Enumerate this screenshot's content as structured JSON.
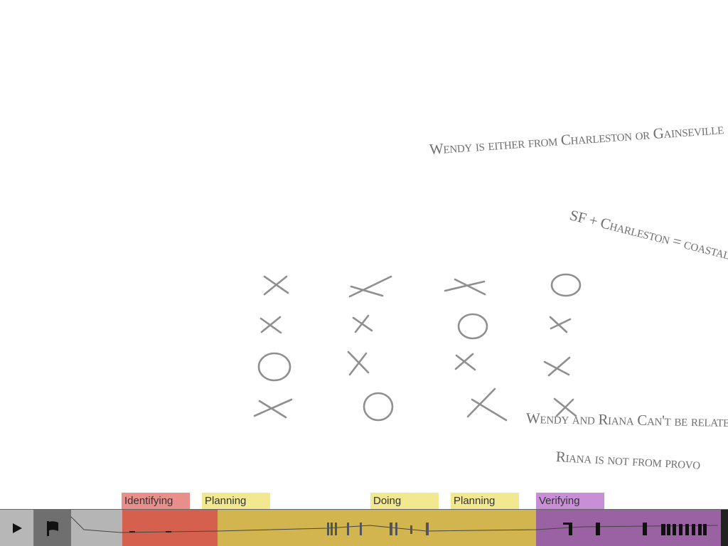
{
  "notes": {
    "note1": "Wendy is either from Charleston or Gainseville",
    "note2": "SF + Charleston = coastal",
    "note3": "Wendy and Riana Can't be related",
    "note4": "Riana is not from provo"
  },
  "grid": {
    "rows": [
      [
        "X",
        "X",
        "X",
        "O"
      ],
      [
        "X",
        "X",
        "O",
        "X"
      ],
      [
        "O",
        "X",
        "X",
        "X"
      ],
      [
        "X",
        "O",
        "X",
        "X"
      ]
    ]
  },
  "timeline": {
    "phases": [
      {
        "label": "Identifying",
        "color": "#e88f8b",
        "segment_color": "#d5604d"
      },
      {
        "label": "Planning",
        "color": "#f2e88f",
        "segment_color": "#d2b54f"
      },
      {
        "label": "Doing",
        "color": "#f2e88f",
        "segment_color": "#d2b54f"
      },
      {
        "label": "Planning",
        "color": "#f2e88f",
        "segment_color": "#d2b54f"
      },
      {
        "label": "Verifying",
        "color": "#c98fd6",
        "segment_color": "#9b62a3"
      }
    ],
    "controls": {
      "play_icon": "play-icon",
      "flag_icon": "flag-icon"
    }
  }
}
